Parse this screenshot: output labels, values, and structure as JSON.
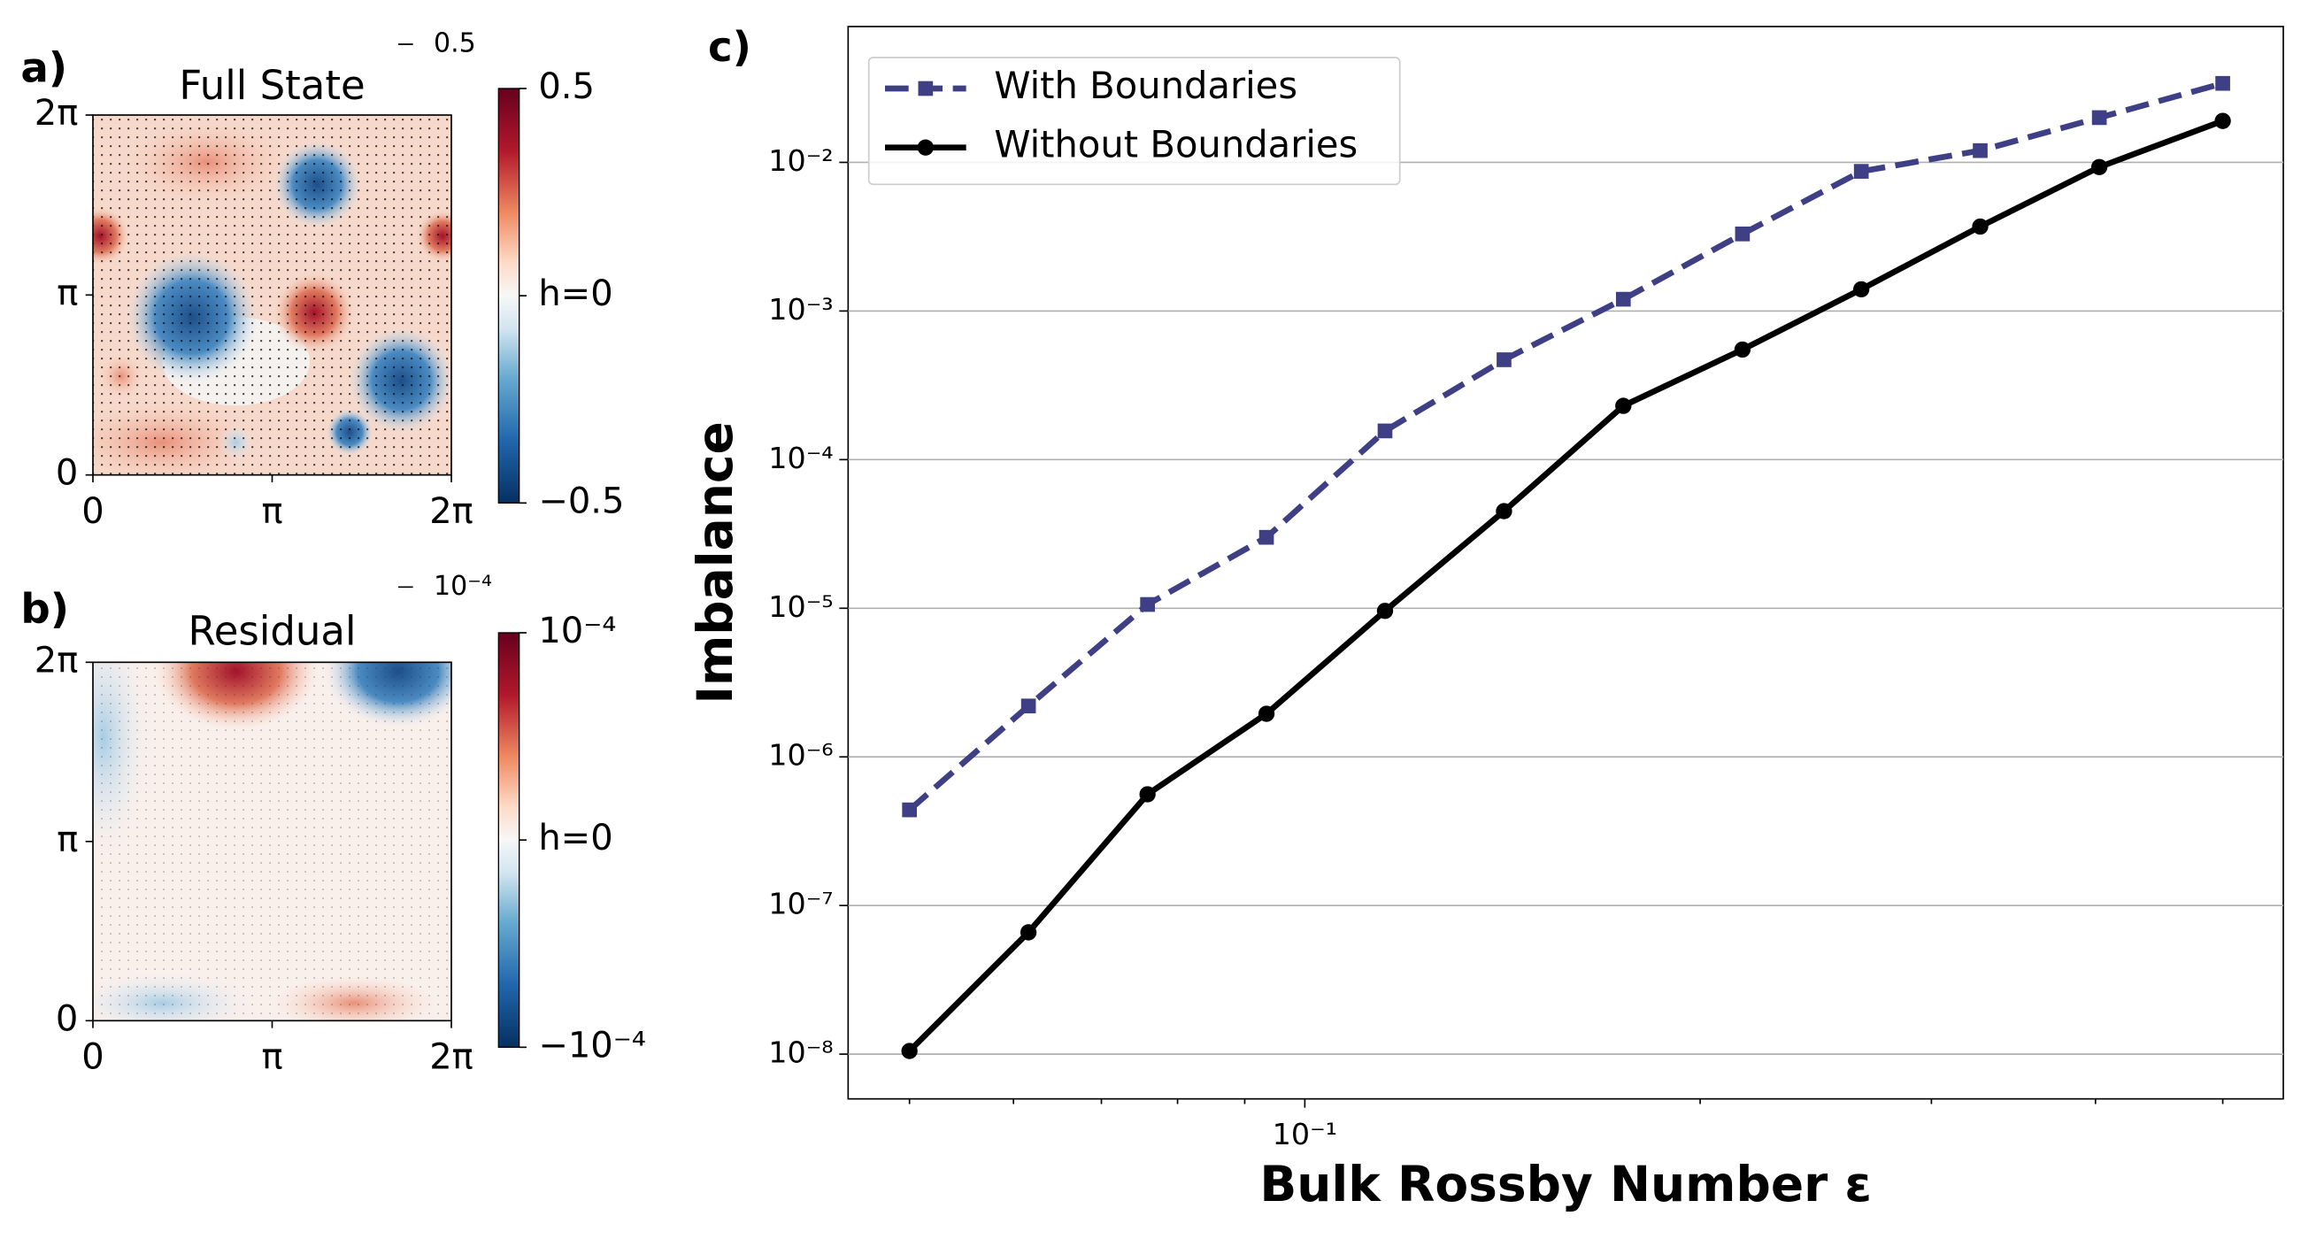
{
  "chart_data": [
    {
      "type": "heatmap",
      "panel_label": "a)",
      "title": "Full State",
      "xlim": [
        0,
        6.28319
      ],
      "ylim": [
        0,
        6.28319
      ],
      "xticks": [
        0,
        {
          "value": 3.14159,
          "label": "π"
        },
        {
          "value": 6.28319,
          "label": "2π"
        }
      ],
      "yticks": [
        0,
        {
          "value": 3.14159,
          "label": "π"
        },
        {
          "value": 6.28319,
          "label": "2π"
        }
      ],
      "clim": [
        -0.5,
        0.5
      ],
      "cticks": [
        0.5,
        {
          "value": 0,
          "label": "h=0"
        },
        {
          "value": -0.5,
          "label": "−0.5"
        }
      ],
      "quiver_key": 0.5
    },
    {
      "type": "heatmap",
      "panel_label": "b)",
      "title": "Residual",
      "xlim": [
        0,
        6.28319
      ],
      "ylim": [
        0,
        6.28319
      ],
      "xticks": [
        0,
        {
          "value": 3.14159,
          "label": "π"
        },
        {
          "value": 6.28319,
          "label": "2π"
        }
      ],
      "yticks": [
        0,
        {
          "value": 3.14159,
          "label": "π"
        },
        {
          "value": 6.28319,
          "label": "2π"
        }
      ],
      "clim": [
        -0.0001,
        0.0001
      ],
      "cticks": [
        {
          "value": 0.0001,
          "label": "10⁻⁴"
        },
        {
          "value": 0,
          "label": "h=0"
        },
        {
          "value": -0.0001,
          "label": "−10⁻⁴"
        }
      ],
      "quiver_key": {
        "value": 0.0001,
        "label": "10⁻⁴"
      }
    },
    {
      "type": "line",
      "panel_label": "c)",
      "xlabel": "Bulk Rossby Number ε",
      "ylabel": "Imbalance",
      "log_x": true,
      "log_y": true,
      "grid": true,
      "legend": "upper left",
      "x": [
        0.05,
        0.0616,
        0.0759,
        0.0935,
        0.1151,
        0.1418,
        0.1748,
        0.2154,
        0.2653,
        0.3268,
        0.4027,
        0.5
      ],
      "xlim": [
        0.0449,
        0.556
      ],
      "xticks": [
        {
          "value": 0.1,
          "label": "10⁻¹"
        }
      ],
      "xminor_ticks": [
        0.05,
        0.06,
        0.07,
        0.08,
        0.09,
        0.2,
        0.3,
        0.4,
        0.5
      ],
      "ylim": [
        5e-09,
        0.082
      ],
      "yticks": [
        {
          "value": 1e-08,
          "label": "10⁻⁸"
        },
        {
          "value": 1e-07,
          "label": "10⁻⁷"
        },
        {
          "value": 1e-06,
          "label": "10⁻⁶"
        },
        {
          "value": 1e-05,
          "label": "10⁻⁵"
        },
        {
          "value": 0.0001,
          "label": "10⁻⁴"
        },
        {
          "value": 0.001,
          "label": "10⁻³"
        },
        {
          "value": 0.01,
          "label": "10⁻²"
        }
      ],
      "series": [
        {
          "name": "With Boundaries",
          "color": "#3f3f86",
          "linestyle": "dashed",
          "marker": "square",
          "values": [
            4.4e-07,
            2.2e-06,
            1.06e-05,
            3e-05,
            0.000156,
            0.00047,
            0.0012,
            0.0033,
            0.0087,
            0.012,
            0.02,
            0.034
          ]
        },
        {
          "name": "Without Boundaries",
          "color": "#000000",
          "linestyle": "solid",
          "marker": "circle",
          "values": [
            1.05e-08,
            6.6e-08,
            5.6e-07,
            1.95e-06,
            9.6e-06,
            4.5e-05,
            0.00023,
            0.00055,
            0.0014,
            0.0037,
            0.0093,
            0.019
          ]
        }
      ]
    }
  ]
}
